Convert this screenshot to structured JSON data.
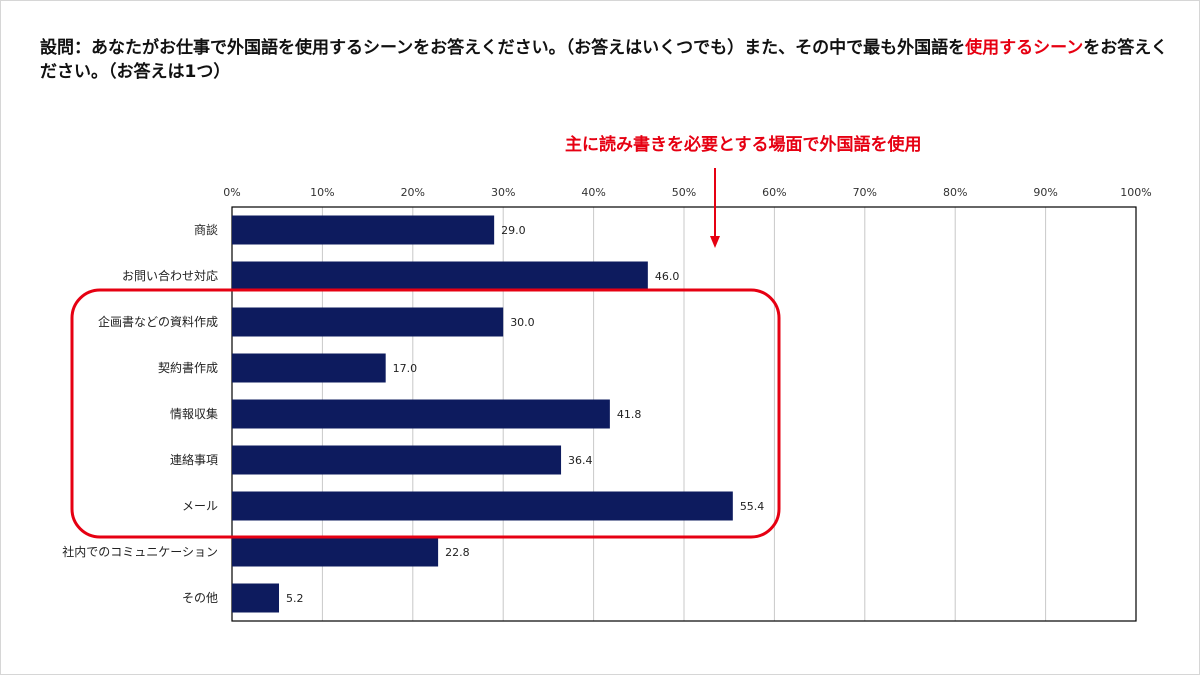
{
  "question": {
    "part1": "設問：あなたがお仕事で外国語を使用するシーンをお答えください。（お答えはいくつでも）また、その中で最も外国語を",
    "highlight": "使用するシーン",
    "part2": "をお答えください。（お答えは1つ）"
  },
  "callout": {
    "text": "主に読み書きを必要とする場面で外国語を使用",
    "color": "#e60012"
  },
  "highlight_group": [
    "企画書などの資料作成",
    "契約書作成",
    "情報収集",
    "連絡事項",
    "メール"
  ],
  "chart_data": {
    "type": "bar",
    "orientation": "horizontal",
    "categories": [
      "商談",
      "お問い合わせ対応",
      "企画書などの資料作成",
      "契約書作成",
      "情報収集",
      "連絡事項",
      "メール",
      "社内でのコミュニケーション",
      "その他"
    ],
    "series": [
      {
        "values": [
          29.0,
          46.0,
          30.0,
          17.0,
          41.8,
          36.4,
          55.4,
          22.8,
          5.2
        ]
      }
    ],
    "value_labels": [
      "29.0",
      "46.0",
      "30.0",
      "17.0",
      "41.8",
      "36.4",
      "55.4",
      "22.8",
      "5.2"
    ],
    "xlim": [
      0,
      100
    ],
    "x_ticks": [
      "0%",
      "10%",
      "20%",
      "30%",
      "40%",
      "50%",
      "60%",
      "70%",
      "80%",
      "90%",
      "100%"
    ],
    "x_axis_position": "top",
    "grid": true,
    "bar_color": "#0d1b5e"
  }
}
